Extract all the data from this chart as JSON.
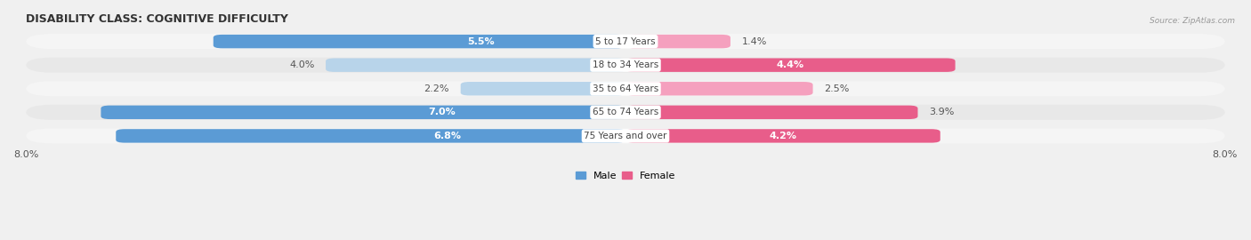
{
  "title": "DISABILITY CLASS: COGNITIVE DIFFICULTY",
  "source": "Source: ZipAtlas.com",
  "categories": [
    "5 to 17 Years",
    "18 to 34 Years",
    "35 to 64 Years",
    "65 to 74 Years",
    "75 Years and over"
  ],
  "male_values": [
    5.5,
    4.0,
    2.2,
    7.0,
    6.8
  ],
  "female_values": [
    1.4,
    4.4,
    2.5,
    3.9,
    4.2
  ],
  "x_max": 8.0,
  "male_color_strong": "#5b9bd5",
  "male_color_light": "#b8d4ea",
  "female_color_strong": "#e85d8a",
  "female_color_light": "#f5a0be",
  "row_bg_color_dark": "#e8e8e8",
  "row_bg_color_light": "#f5f5f5",
  "fig_bg_color": "#f0f0f0",
  "title_fontsize": 9,
  "tick_fontsize": 8,
  "label_fontsize": 7.5,
  "value_fontsize": 8,
  "male_colors": [
    "#5b9bd5",
    "#b8d4ea",
    "#b8d4ea",
    "#5b9bd5",
    "#5b9bd5"
  ],
  "female_colors": [
    "#f5a0be",
    "#e85d8a",
    "#f5a0be",
    "#e85d8a",
    "#e85d8a"
  ]
}
